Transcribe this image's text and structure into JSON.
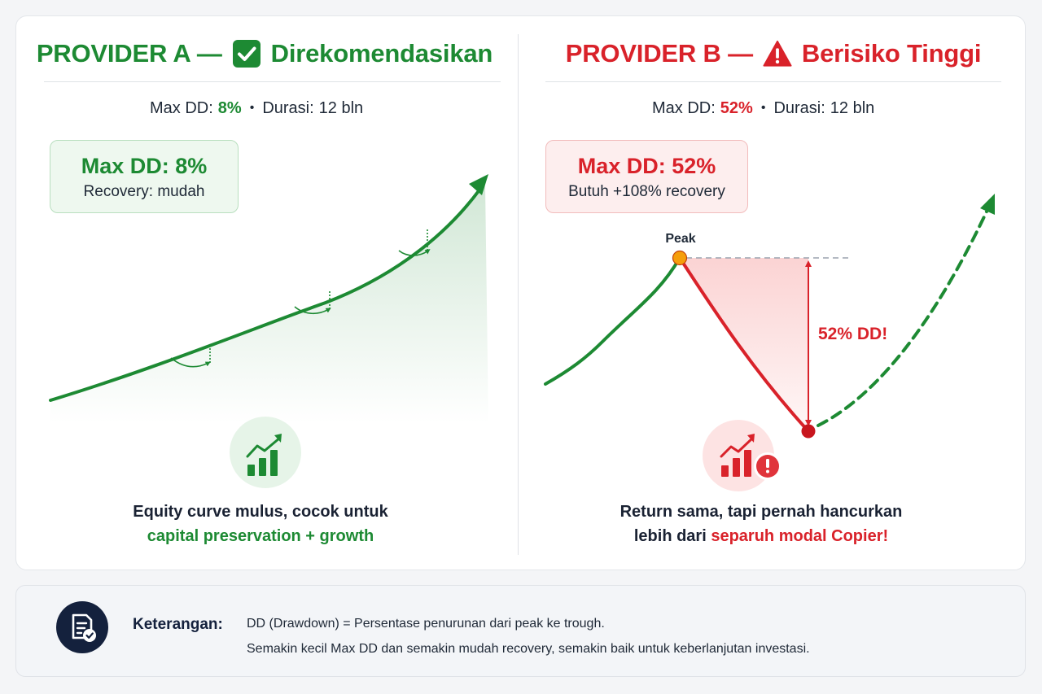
{
  "colors": {
    "green": "#1d8a33",
    "red": "#d9222a",
    "peak_marker": "#f59e0b",
    "navy": "#14213d"
  },
  "provider_a": {
    "title": "PROVIDER A —",
    "status": "Direkomendasikan",
    "status_icon": "check-box-icon",
    "stats": {
      "label_dd": "Max DD:",
      "value_dd": "8%",
      "separator": "•",
      "label_dur": "Durasi:",
      "value_dur": "12 bln"
    },
    "callout": {
      "headline": "Max DD: 8%",
      "subline": "Recovery: mudah"
    },
    "caption": {
      "line1": "Equity curve mulus, cocok untuk",
      "line2": "capital preservation + growth"
    },
    "icon": "growth-bar-chart-icon"
  },
  "provider_b": {
    "title": "PROVIDER B —",
    "status": "Berisiko Tinggi",
    "status_icon": "warning-triangle-icon",
    "stats": {
      "label_dd": "Max DD:",
      "value_dd": "52%",
      "separator": "•",
      "label_dur": "Durasi:",
      "value_dur": "12 bln"
    },
    "callout": {
      "headline": "Max DD: 52%",
      "subline": "Butuh +108% recovery"
    },
    "peak_label": "Peak",
    "dd_label": "52% DD!",
    "caption": {
      "line1": "Return sama, tapi pernah hancurkan",
      "line2_prefix": "lebih dari",
      "line2_highlight": "separuh modal Copier!"
    },
    "icon": "risk-bar-chart-icon"
  },
  "legend": {
    "icon": "document-check-icon",
    "title": "Keterangan:",
    "line1": "DD (Drawdown) = Persentase penurunan dari peak ke trough.",
    "line2": "Semakin kecil Max DD dan semakin mudah recovery, semakin baik untuk keberlanjutan investasi."
  }
}
